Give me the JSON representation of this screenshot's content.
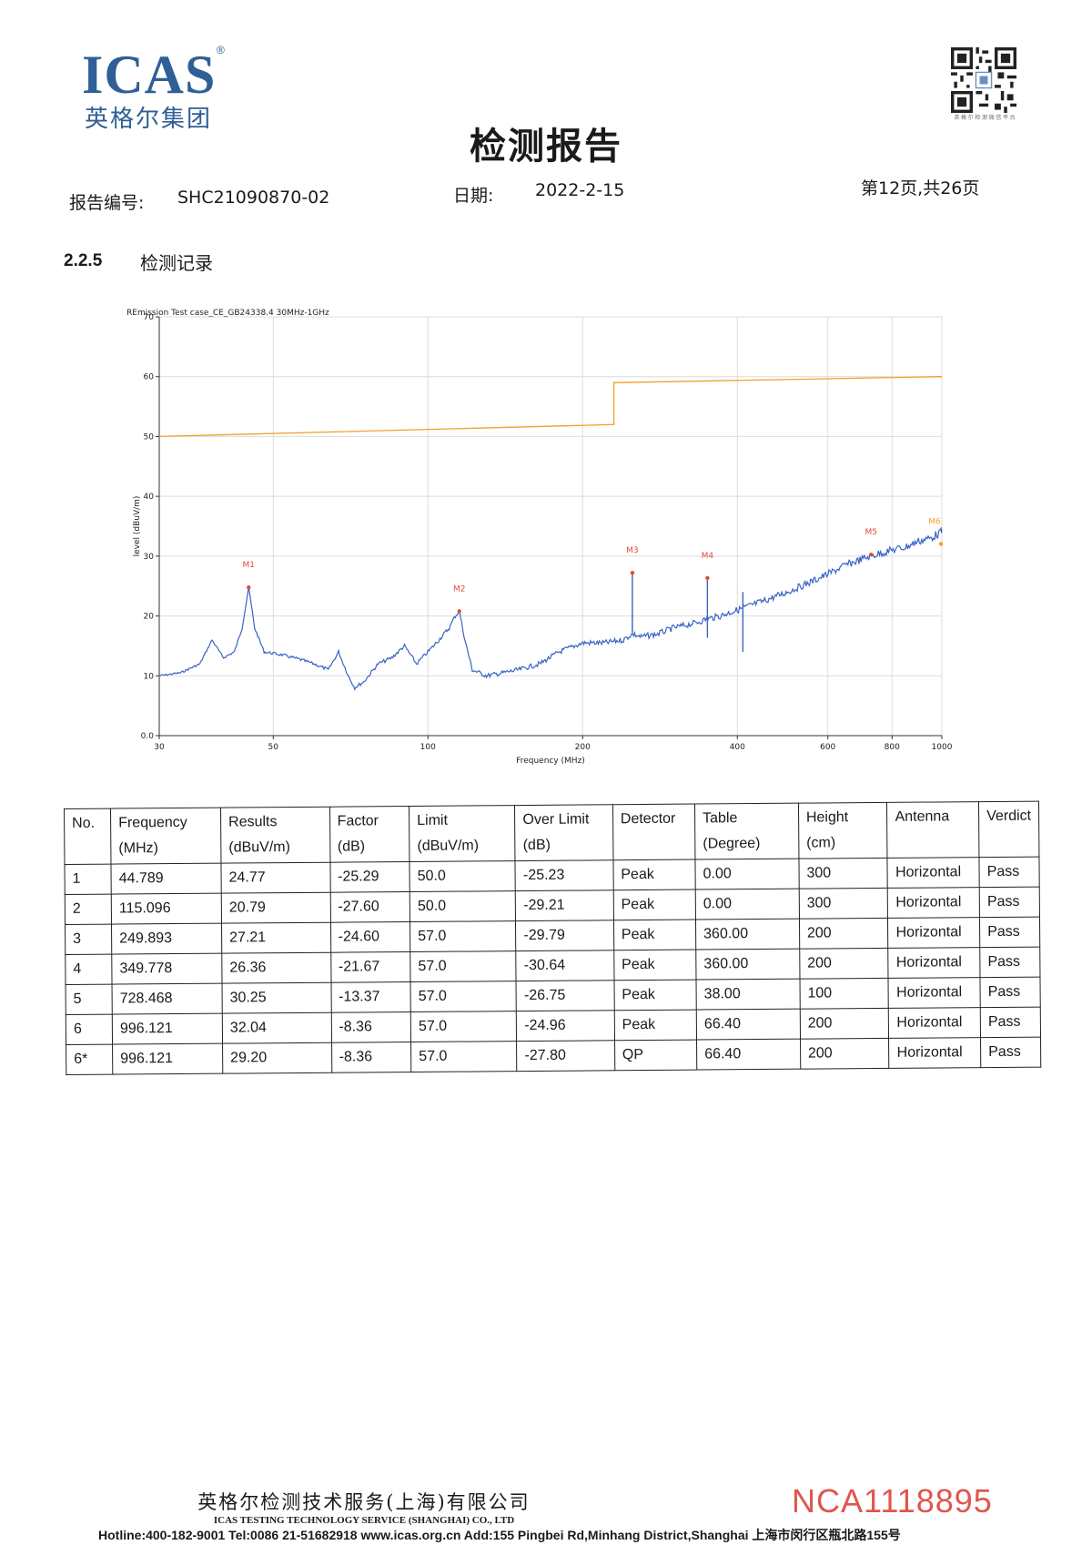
{
  "header": {
    "logo_text": "ICAS",
    "logo_reg": "®",
    "logo_cn": "英格尔集团",
    "qr_caption": "英 格 尔 检 测 微 信 平 台",
    "title": "检测报告",
    "report_no_label": "报告编号:",
    "report_no": "SHC21090870-02",
    "date_label": "日期:",
    "date": "2022-2-15",
    "page": "第12页,共26页"
  },
  "section": {
    "number": "2.2.5",
    "title": "检测记录"
  },
  "chart_data": {
    "type": "line",
    "title": "REmission Test case_CE_GB24338.4 30MHz-1GHz",
    "xlabel": "Frequency (MHz)",
    "ylabel": "level (dBuV/m)",
    "x_scale": "log",
    "xlim": [
      30,
      1000
    ],
    "ylim": [
      0,
      70
    ],
    "x_ticks": [
      30,
      50,
      100,
      200,
      400,
      600,
      800,
      1000
    ],
    "x_tick_labels": [
      "30",
      "50",
      "100",
      "200",
      "400",
      "600",
      "800",
      "1000"
    ],
    "y_ticks": [
      0,
      10,
      20,
      30,
      40,
      50,
      60,
      70
    ],
    "y_tick_labels": [
      "0.0",
      "10",
      "20",
      "30",
      "40",
      "50",
      "60",
      "70"
    ],
    "grid": true,
    "colors": {
      "trace": "#3a63c4",
      "limit": "#f0a030",
      "marker": "#e04b3c",
      "marker_last": "#f0a030"
    },
    "limit_line": {
      "x": [
        30,
        230,
        230,
        1000
      ],
      "y": [
        50,
        52,
        59,
        60
      ]
    },
    "trace": {
      "x": [
        30,
        33,
        36,
        38,
        40,
        42,
        43.5,
        44.8,
        46,
        48,
        52,
        56,
        60,
        64,
        67,
        70,
        72,
        75,
        80,
        85,
        90,
        95,
        100,
        105,
        110,
        113,
        115.1,
        118,
        122,
        130,
        140,
        150,
        165,
        180,
        200,
        220,
        240,
        250,
        260,
        280,
        300,
        330,
        350,
        370,
        400,
        450,
        500,
        550,
        600,
        650,
        700,
        728,
        760,
        800,
        850,
        900,
        950,
        996,
        1000
      ],
      "y": [
        10,
        10.5,
        12,
        16,
        13,
        14,
        18,
        24.8,
        18,
        14,
        13.5,
        12.8,
        12,
        11,
        14,
        10,
        8,
        9,
        12,
        13,
        15,
        12,
        14,
        16,
        18,
        20,
        20.8,
        16,
        11,
        10,
        10.5,
        11,
        12,
        14,
        15.5,
        15.5,
        16,
        17,
        16.5,
        17,
        18,
        18.8,
        19.5,
        20,
        21,
        22.5,
        24,
        25.5,
        27,
        28.5,
        29.5,
        30,
        30.5,
        31,
        31.5,
        32.5,
        33,
        34,
        34.5
      ]
    },
    "spikes": [
      {
        "x": 249.893,
        "y": 27.21
      },
      {
        "x": 349.778,
        "y": 26.36
      },
      {
        "x": 410,
        "y": 24
      }
    ],
    "markers": [
      {
        "label": "M1",
        "x": 44.789,
        "y": 24.77
      },
      {
        "label": "M2",
        "x": 115.096,
        "y": 20.79
      },
      {
        "label": "M3",
        "x": 249.893,
        "y": 27.21
      },
      {
        "label": "M4",
        "x": 349.778,
        "y": 26.36
      },
      {
        "label": "M5",
        "x": 728.468,
        "y": 30.25
      },
      {
        "label": "M6",
        "x": 996.121,
        "y": 32.04
      }
    ]
  },
  "table": {
    "headers": [
      [
        "No."
      ],
      [
        "Frequency",
        "(MHz)"
      ],
      [
        "Results",
        "(dBuV/m)"
      ],
      [
        "Factor",
        "(dB)"
      ],
      [
        "Limit",
        "(dBuV/m)"
      ],
      [
        "Over Limit",
        "(dB)"
      ],
      [
        "Detector"
      ],
      [
        "Table",
        "(Degree)"
      ],
      [
        "Height",
        "(cm)"
      ],
      [
        "Antenna"
      ],
      [
        "Verdict"
      ]
    ],
    "rows": [
      [
        "1",
        "44.789",
        "24.77",
        "-25.29",
        "50.0",
        "-25.23",
        "Peak",
        "0.00",
        "300",
        "Horizontal",
        "Pass"
      ],
      [
        "2",
        "115.096",
        "20.79",
        "-27.60",
        "50.0",
        "-29.21",
        "Peak",
        "0.00",
        "300",
        "Horizontal",
        "Pass"
      ],
      [
        "3",
        "249.893",
        "27.21",
        "-24.60",
        "57.0",
        "-29.79",
        "Peak",
        "360.00",
        "200",
        "Horizontal",
        "Pass"
      ],
      [
        "4",
        "349.778",
        "26.36",
        "-21.67",
        "57.0",
        "-30.64",
        "Peak",
        "360.00",
        "200",
        "Horizontal",
        "Pass"
      ],
      [
        "5",
        "728.468",
        "30.25",
        "-13.37",
        "57.0",
        "-26.75",
        "Peak",
        "38.00",
        "100",
        "Horizontal",
        "Pass"
      ],
      [
        "6",
        "996.121",
        "32.04",
        "-8.36",
        "57.0",
        "-24.96",
        "Peak",
        "66.40",
        "200",
        "Horizontal",
        "Pass"
      ],
      [
        "6*",
        "996.121",
        "29.20",
        "-8.36",
        "57.0",
        "-27.80",
        "QP",
        "66.40",
        "200",
        "Horizontal",
        "Pass"
      ]
    ]
  },
  "footer": {
    "company_cn": "英格尔检测技术服务(上海)有限公司",
    "company_en": "ICAS TESTING TECHNOLOGY SERVICE (SHANGHAI) CO., LTD",
    "nca": "NCA1118895",
    "contact": "Hotline:400-182-9001  Tel:0086 21-51682918  www.icas.org.cn   Add:155 Pingbei Rd,Minhang District,Shanghai 上海市闵行区瓶北路155号"
  }
}
